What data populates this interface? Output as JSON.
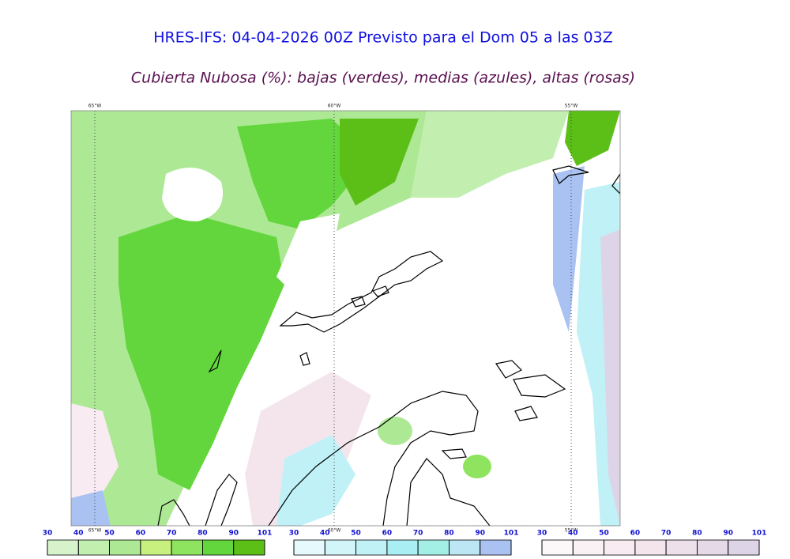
{
  "header": {
    "title": "HRES-IFS: 04-04-2026 00Z Previsto para el Dom 05 a las 03Z",
    "subtitle": "Cubierta Nubosa (%): bajas (verdes), medias (azules), altas (rosas)"
  },
  "map": {
    "longitude_labels": [
      "65°W",
      "60°W",
      "55°W"
    ]
  },
  "colorbars": [
    {
      "ticks": [
        30,
        40,
        50,
        60,
        70,
        80,
        90,
        101
      ],
      "colors": [
        "#d6f3cc",
        "#c2eeb0",
        "#ade894",
        "#c8f07e",
        "#8ee45e",
        "#62d63c",
        "#5cbf18"
      ]
    },
    {
      "ticks": [
        30,
        40,
        50,
        60,
        70,
        80,
        90,
        101
      ],
      "colors": [
        "#e6f9fc",
        "#d2f5fa",
        "#bff1f7",
        "#a9eef2",
        "#a3efe6",
        "#bce6f3",
        "#a9c2f1"
      ]
    },
    {
      "ticks": [
        30,
        40,
        50,
        60,
        70,
        80,
        90,
        101
      ],
      "colors": [
        "#fcf7f9",
        "#faf1f5",
        "#f8ebf1",
        "#f4e5ed",
        "#ede0ea",
        "#e5d9e7",
        "#ddd5e7"
      ]
    }
  ]
}
